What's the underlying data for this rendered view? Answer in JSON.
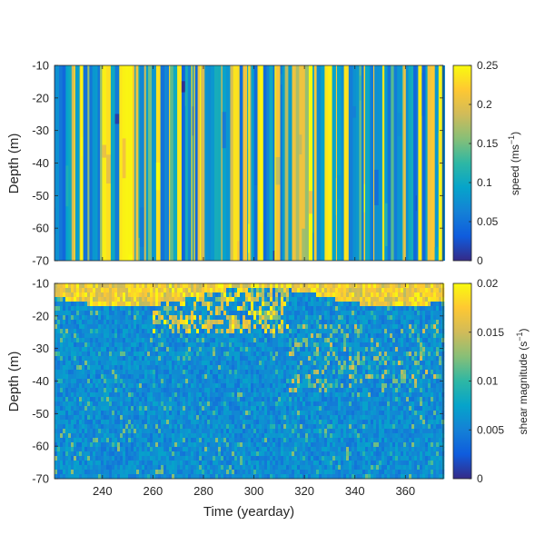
{
  "chart_data": [
    {
      "type": "heatmap",
      "name": "speed-panel",
      "ylabel": "Depth (m)",
      "xlim": [
        221,
        375
      ],
      "ylim": [
        -70,
        -10
      ],
      "y_ticks": [
        -10,
        -20,
        -30,
        -40,
        -50,
        -60,
        -70
      ],
      "x_ticks": [
        240,
        260,
        280,
        300,
        320,
        340,
        360
      ],
      "show_x_tick_labels": false,
      "colorbar": {
        "label_main": "speed (ms",
        "label_sup": "−1",
        "label_end": ")",
        "range": [
          0,
          0.25
        ],
        "ticks": [
          0,
          0.05,
          0.1,
          0.15,
          0.2,
          0.25
        ],
        "tick_labels": [
          "0",
          "0.05",
          "0.1",
          "0.15",
          "0.2",
          "0.25"
        ]
      },
      "colormap": "parula"
    },
    {
      "type": "heatmap",
      "name": "shear-panel",
      "ylabel": "Depth (m)",
      "xlabel": "Time (yearday)",
      "xlim": [
        221,
        375
      ],
      "ylim": [
        -70,
        -10
      ],
      "y_ticks": [
        -10,
        -20,
        -30,
        -40,
        -50,
        -60,
        -70
      ],
      "x_ticks": [
        240,
        260,
        280,
        300,
        320,
        340,
        360
      ],
      "show_x_tick_labels": true,
      "colorbar": {
        "label_main": "shear magnitude (s",
        "label_sup": "−1",
        "label_end": ")",
        "range": [
          0,
          0.02
        ],
        "ticks": [
          0,
          0.005,
          0.01,
          0.015,
          0.02
        ],
        "tick_labels": [
          "0",
          "0.005",
          "0.01",
          "0.015",
          "0.02"
        ]
      },
      "colormap": "parula"
    }
  ]
}
